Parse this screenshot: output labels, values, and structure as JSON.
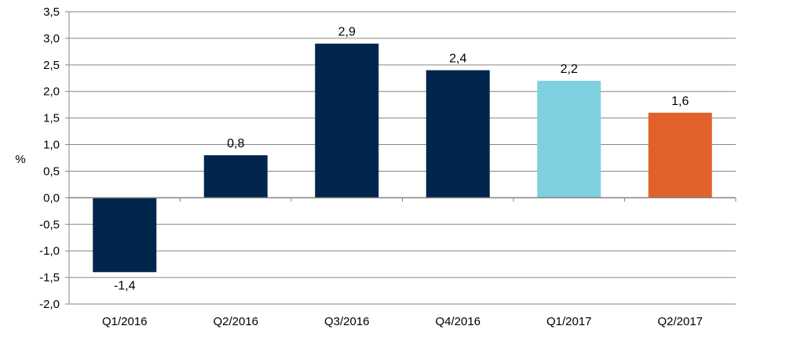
{
  "chart_data": {
    "type": "bar",
    "categories": [
      "Q1/2016",
      "Q2/2016",
      "Q3/2016",
      "Q4/2016",
      "Q1/2017",
      "Q2/2017"
    ],
    "values": [
      -1.4,
      0.8,
      2.9,
      2.4,
      2.2,
      1.6
    ],
    "value_labels": [
      "-1,4",
      "0,8",
      "2,9",
      "2,4",
      "2,2",
      "1,6"
    ],
    "bar_colors": [
      "#00264D",
      "#00264D",
      "#00264D",
      "#00264D",
      "#7FD0E0",
      "#E0622A"
    ],
    "ylabel": "%",
    "ylim": [
      -2.0,
      3.5
    ],
    "yticks": [
      3.5,
      3.0,
      2.5,
      2.0,
      1.5,
      1.0,
      0.5,
      0.0,
      -0.5,
      -1.0,
      -1.5,
      -2.0
    ],
    "ytick_labels": [
      "3,5",
      "3,0",
      "2,5",
      "2,0",
      "1,5",
      "1,0",
      "0,5",
      "0,0",
      "-0,5",
      "-1,0",
      "-1,5",
      "-2,0"
    ],
    "grid": true,
    "gridline_color": "#868686",
    "legend": "none"
  }
}
